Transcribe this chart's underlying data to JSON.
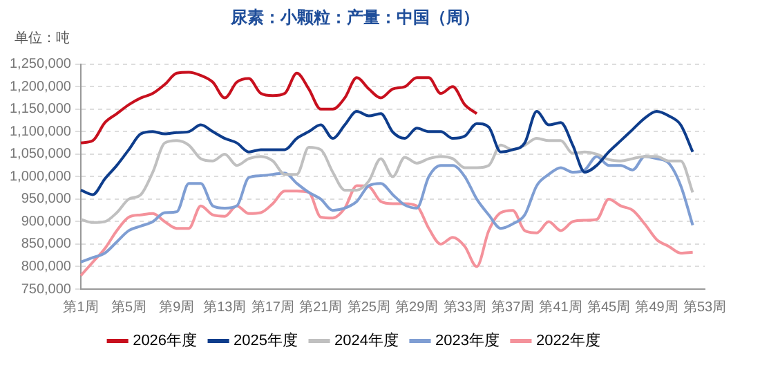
{
  "chart_data": {
    "type": "line",
    "title": "尿素：小颗粒：产量：中国（周）",
    "annotations": [
      "单位：吨"
    ],
    "categories": [
      "第1周",
      null,
      null,
      null,
      "第5周",
      null,
      null,
      null,
      "第9周",
      null,
      null,
      null,
      "第13周",
      null,
      null,
      null,
      "第17周",
      null,
      null,
      null,
      "第21周",
      null,
      null,
      null,
      "第25周",
      null,
      null,
      null,
      "第29周",
      null,
      null,
      null,
      "第33周",
      null,
      null,
      null,
      "第37周",
      null,
      null,
      null,
      "第41周",
      null,
      null,
      null,
      "第45周",
      null,
      null,
      null,
      "第49周",
      null,
      null,
      null,
      "第53周"
    ],
    "series": [
      {
        "name": "2026年度",
        "color": "#c8101e",
        "values": [
          1075000,
          1080000,
          1120000,
          1140000,
          1160000,
          1175000,
          1185000,
          1205000,
          1230000,
          1232000,
          1225000,
          1210000,
          1175000,
          1210000,
          1218000,
          1185000,
          1180000,
          1185000,
          1230000,
          1195000,
          1150000,
          1150000,
          1175000,
          1220000,
          1195000,
          1175000,
          1195000,
          1200000,
          1220000,
          1220000,
          1185000,
          1200000,
          1160000,
          1140000,
          null,
          null,
          null,
          null,
          null,
          null,
          null,
          null,
          null,
          null,
          null,
          null,
          null,
          null,
          null,
          null,
          null,
          null,
          null
        ]
      },
      {
        "name": "2025年度",
        "color": "#0e3d8c",
        "values": [
          970000,
          960000,
          995000,
          1025000,
          1060000,
          1095000,
          1100000,
          1095000,
          1098000,
          1100000,
          1115000,
          1100000,
          1085000,
          1075000,
          1055000,
          1060000,
          1060000,
          1060000,
          1085000,
          1100000,
          1115000,
          1085000,
          1115000,
          1145000,
          1135000,
          1140000,
          1099000,
          1085000,
          1108000,
          1100000,
          1100000,
          1085000,
          1090000,
          1118000,
          1110000,
          1055000,
          1060000,
          1075000,
          1145000,
          1115000,
          1120000,
          1070000,
          1010000,
          1025000,
          1055000,
          1080000,
          1105000,
          1130000,
          1145000,
          1135000,
          1115000,
          1055000,
          null
        ]
      },
      {
        "name": "2024年度",
        "color": "#c0c0c0",
        "values": [
          905000,
          898000,
          900000,
          920000,
          950000,
          960000,
          1010000,
          1075000,
          1080000,
          1070000,
          1040000,
          1035000,
          1050000,
          1025000,
          1040000,
          1045000,
          1035000,
          1005000,
          1005000,
          1065000,
          1060000,
          1010000,
          970000,
          970000,
          990000,
          1040000,
          1000000,
          1043000,
          1030000,
          1040000,
          1045000,
          1040000,
          1020000,
          1020000,
          1025000,
          1070000,
          1060000,
          1070000,
          1085000,
          1080000,
          1080000,
          1052000,
          1055000,
          1050000,
          1038000,
          1035000,
          1040000,
          1045000,
          1045000,
          1035000,
          1035000,
          965000,
          null
        ]
      },
      {
        "name": "2023年度",
        "color": "#7f9ed3",
        "values": [
          810000,
          820000,
          830000,
          855000,
          880000,
          890000,
          900000,
          920000,
          922000,
          985000,
          985000,
          935000,
          930000,
          935000,
          998000,
          1002000,
          1005000,
          1008000,
          985000,
          965000,
          950000,
          925000,
          930000,
          945000,
          980000,
          985000,
          960000,
          937000,
          930000,
          1000000,
          1025000,
          1025000,
          1000000,
          950000,
          915000,
          885000,
          895000,
          915000,
          980000,
          1005000,
          1020000,
          1010000,
          1015000,
          1045000,
          1025000,
          1025000,
          1015000,
          1045000,
          1040000,
          1030000,
          980000,
          892000,
          null
        ]
      },
      {
        "name": "2022年度",
        "color": "#f4929b",
        "values": [
          780000,
          810000,
          840000,
          880000,
          910000,
          915000,
          918000,
          900000,
          885000,
          885000,
          935000,
          915000,
          912000,
          935000,
          918000,
          920000,
          940000,
          968000,
          968000,
          965000,
          910000,
          908000,
          930000,
          980000,
          978000,
          945000,
          940000,
          940000,
          935000,
          885000,
          850000,
          865000,
          845000,
          800000,
          880000,
          920000,
          925000,
          880000,
          875000,
          900000,
          880000,
          900000,
          903000,
          905000,
          950000,
          935000,
          925000,
          895000,
          860000,
          845000,
          830000,
          832000,
          null
        ]
      }
    ],
    "ylim": [
      750000,
      1250000
    ],
    "yticks": [
      {
        "value": 750000,
        "label": "750,000"
      },
      {
        "value": 800000,
        "label": "800,000"
      },
      {
        "value": 850000,
        "label": "850,000"
      },
      {
        "value": 900000,
        "label": "900,000"
      },
      {
        "value": 950000,
        "label": "950,000"
      },
      {
        "value": 1000000,
        "label": "1,000,000"
      },
      {
        "value": 1050000,
        "label": "1,050,000"
      },
      {
        "value": 1100000,
        "label": "1,100,000"
      },
      {
        "value": 1150000,
        "label": "1,150,000"
      },
      {
        "value": 1200000,
        "label": "1,200,000"
      },
      {
        "value": 1250000,
        "label": "1,250,000"
      }
    ],
    "grid": "y",
    "legend": "bottom",
    "marker": "none",
    "line_style": "solid"
  }
}
